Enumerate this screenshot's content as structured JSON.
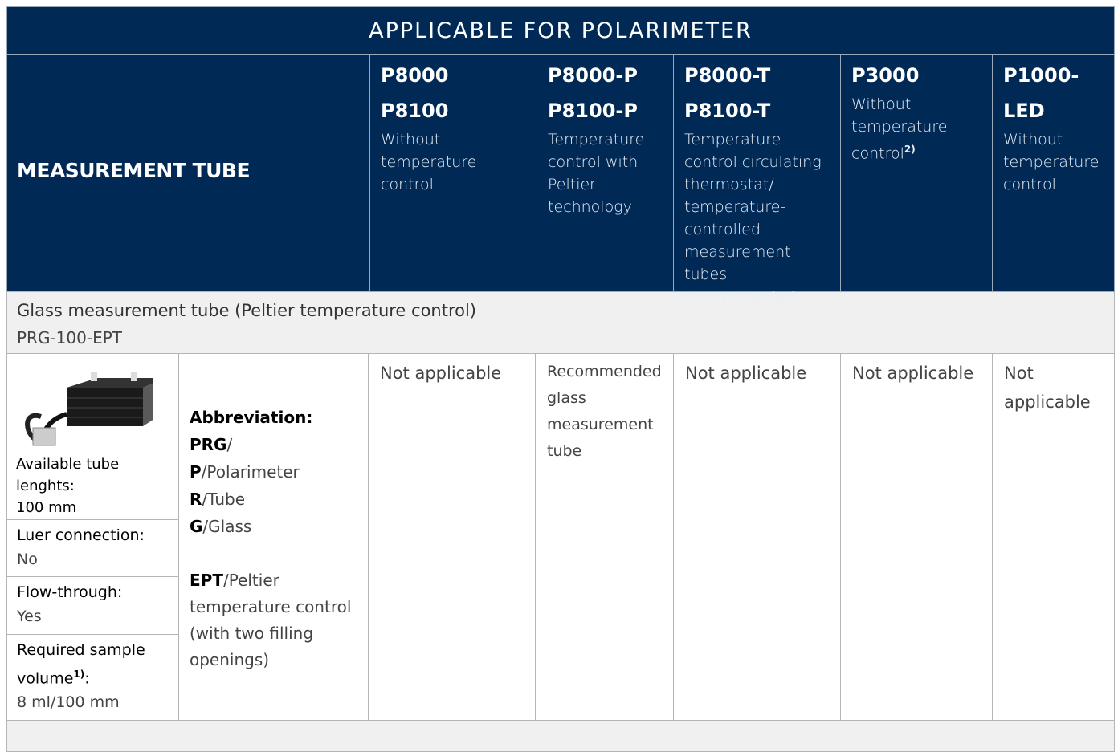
{
  "header": {
    "title": "APPLICABLE FOR POLARIMETER",
    "row_label": "MEASUREMENT TUBE",
    "columns": [
      {
        "models": [
          "P8000",
          "P8100"
        ],
        "description": "Without temperature control"
      },
      {
        "models": [
          "P8000-P",
          "P8100-P"
        ],
        "description": "Temperature control with Peltier technology"
      },
      {
        "models": [
          "P8000-T",
          "P8100-T"
        ],
        "description": "Temperature control circulating thermostat/ temperature-controlled measurement tubes recommended"
      },
      {
        "models": [
          "P3000"
        ],
        "description": "Without temperature control",
        "note": "2)"
      },
      {
        "models": [
          "P1000-LED"
        ],
        "description": "Without temperature control"
      }
    ]
  },
  "tube": {
    "name": "Glass measurement tube (Peltier temperature control)",
    "code": "PRG-100-EPT",
    "specs": [
      {
        "label": "Available tube lenghts:",
        "value": "100 mm"
      },
      {
        "label": "Luer connection:",
        "value": "No"
      },
      {
        "label": "Flow-through:",
        "value": "Yes"
      },
      {
        "label": "Required sample volume",
        "note": "1)",
        "suffix": ":",
        "value": "8 ml/100 mm"
      }
    ],
    "abbreviation": {
      "title": "Abbreviation:",
      "lines": [
        {
          "bold": "PRG",
          "text": "/"
        },
        {
          "bold": "P",
          "text": "/Polarimeter"
        },
        {
          "bold": "R",
          "text": "/Tube"
        },
        {
          "bold": "G",
          "text": "/Glass"
        },
        {
          "bold": "EPT",
          "text": "/Peltier temperature control (with two filling openings)"
        }
      ]
    },
    "applicability": [
      "Not applicable",
      "Recommended glass measurement tube",
      "Not applicable",
      "Not applicable",
      "Not applicable"
    ]
  }
}
